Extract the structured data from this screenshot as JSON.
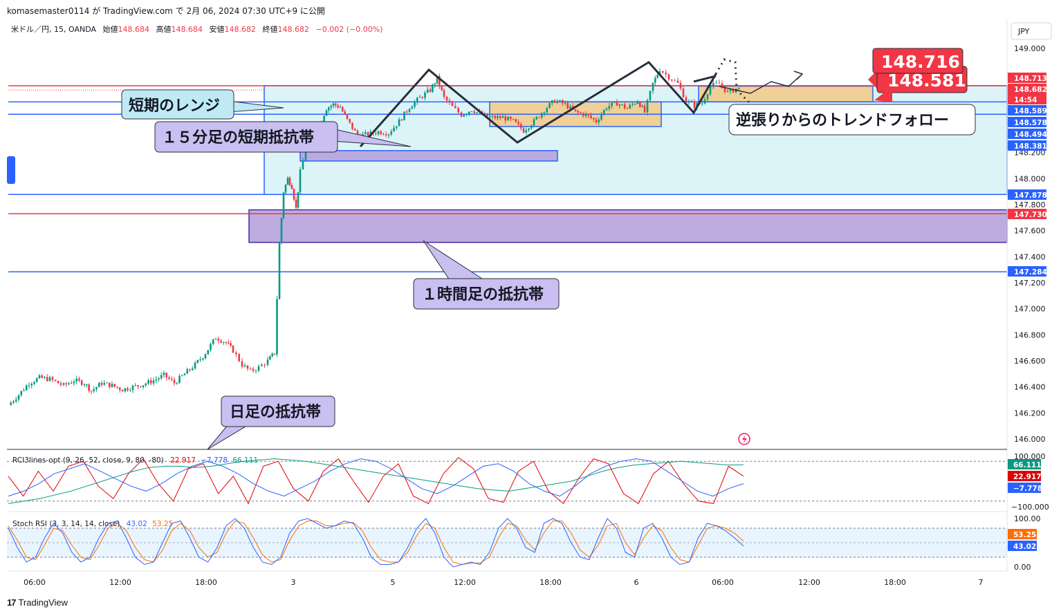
{
  "header": {
    "publish_line": "komasemaster0114 が TradingView.com で 2月 06, 2024 07:30 UTC+9 に公開"
  },
  "legend": {
    "symbol": "米ドル／円, 15, OANDA",
    "open_label": "始値",
    "open": "148.684",
    "high_label": "高値",
    "high": "148.684",
    "low_label": "安値",
    "low": "148.682",
    "close_label": "終値",
    "close": "148.682",
    "change": "−0.002 (−0.00%)"
  },
  "currency_button": "JPY",
  "footer_brand": "TradingView",
  "colors": {
    "up": "#089981",
    "down": "#f23645",
    "blue_line": "#2962ff",
    "red_line": "#f23645",
    "range_fill": "#d6f2f7",
    "purple_fill": "#b39ddb",
    "orange_fill": "#f3c985"
  },
  "annotations": {
    "short_range": "短期のレンジ",
    "m15_resistance": "１５分足の短期抵抗帯",
    "h1_resistance": "１時間足の抵抗帯",
    "daily_resistance": "日足の抵抗帯",
    "trend_follow": "逆張りからのトレンドフォロー",
    "target_high": "148.716",
    "target_low": "148.581"
  },
  "price_badges": [
    {
      "text": "148.713",
      "color": "#f23645"
    },
    {
      "text": "148.682",
      "color": "#f23645"
    },
    {
      "text": "14:54",
      "color": "#f23645"
    },
    {
      "text": "148.589",
      "color": "#2962ff"
    },
    {
      "text": "148.578",
      "color": "#2962ff"
    },
    {
      "text": "148.494",
      "color": "#2962ff"
    },
    {
      "text": "148.381",
      "color": "#2962ff"
    },
    {
      "text": "147.878",
      "color": "#2962ff"
    },
    {
      "text": "147.730",
      "color": "#f23645"
    },
    {
      "text": "147.284",
      "color": "#2962ff"
    }
  ],
  "rci_panel": {
    "title": "RCI3lines-opt (9, 26, 52, close, 9, 80, -80)",
    "v1": "22.917",
    "v2": "−7.778",
    "v3": "66.111",
    "badges": [
      {
        "text": "66.111",
        "color": "#089981"
      },
      {
        "text": "22.917",
        "color": "#e00000"
      },
      {
        "text": "−7.778",
        "color": "#2962ff"
      }
    ],
    "axis": [
      "100.000",
      "−100.000"
    ]
  },
  "stoch_panel": {
    "title": "Stoch RSI (3, 3, 14, 14, close)",
    "k": "43.02",
    "d": "53.25",
    "badges": [
      {
        "text": "53.25",
        "color": "#ff6d00"
      },
      {
        "text": "43.02",
        "color": "#2962ff"
      }
    ],
    "axis": [
      "100.00",
      "0.00"
    ]
  },
  "chart_data": {
    "type": "candlestick",
    "symbol": "USDJPY",
    "interval": "15",
    "price_axis": [
      "149.000",
      "148.200",
      "148.000",
      "147.800",
      "147.600",
      "147.400",
      "147.200",
      "147.000",
      "146.800",
      "146.600",
      "146.400",
      "146.200",
      "146.000"
    ],
    "time_axis": [
      "06:00",
      "12:00",
      "18:00",
      "3",
      "5",
      "12:00",
      "18:00",
      "6",
      "06:00",
      "12:00",
      "18:00",
      "7"
    ],
    "levels": [
      148.713,
      148.682,
      148.589,
      148.578,
      148.494,
      148.381,
      147.878,
      147.73,
      147.284
    ],
    "path": [
      [
        0,
        146.26
      ],
      [
        15,
        146.34
      ],
      [
        30,
        146.43
      ],
      [
        45,
        146.47
      ],
      [
        60,
        146.46
      ],
      [
        80,
        146.41
      ],
      [
        95,
        146.45
      ],
      [
        110,
        146.43
      ],
      [
        120,
        146.37
      ],
      [
        135,
        146.43
      ],
      [
        150,
        146.41
      ],
      [
        165,
        146.38
      ],
      [
        180,
        146.4
      ],
      [
        195,
        146.42
      ],
      [
        210,
        146.45
      ],
      [
        225,
        146.49
      ],
      [
        240,
        146.43
      ],
      [
        255,
        146.5
      ],
      [
        270,
        146.57
      ],
      [
        285,
        146.66
      ],
      [
        300,
        146.78
      ],
      [
        315,
        146.74
      ],
      [
        325,
        146.68
      ],
      [
        338,
        146.57
      ],
      [
        350,
        146.52
      ],
      [
        362,
        146.55
      ],
      [
        375,
        146.6
      ],
      [
        385,
        146.66
      ],
      [
        392,
        147.5
      ],
      [
        398,
        147.9
      ],
      [
        404,
        148.0
      ],
      [
        410,
        147.94
      ],
      [
        416,
        147.77
      ],
      [
        422,
        148.05
      ],
      [
        430,
        148.22
      ],
      [
        440,
        148.3
      ],
      [
        450,
        148.41
      ],
      [
        460,
        148.54
      ],
      [
        470,
        148.57
      ],
      [
        480,
        148.55
      ],
      [
        490,
        148.45
      ],
      [
        505,
        148.33
      ],
      [
        520,
        148.34
      ],
      [
        535,
        148.36
      ],
      [
        550,
        148.35
      ],
      [
        565,
        148.44
      ],
      [
        580,
        148.55
      ],
      [
        595,
        148.62
      ],
      [
        610,
        148.68
      ],
      [
        620,
        148.77
      ],
      [
        630,
        148.62
      ],
      [
        642,
        148.55
      ],
      [
        655,
        148.49
      ],
      [
        670,
        148.53
      ],
      [
        685,
        148.49
      ],
      [
        700,
        148.47
      ],
      [
        715,
        148.47
      ],
      [
        730,
        148.44
      ],
      [
        745,
        148.37
      ],
      [
        760,
        148.44
      ],
      [
        775,
        148.53
      ],
      [
        790,
        148.6
      ],
      [
        805,
        148.57
      ],
      [
        820,
        148.51
      ],
      [
        835,
        148.49
      ],
      [
        850,
        148.44
      ],
      [
        865,
        148.55
      ],
      [
        880,
        148.58
      ],
      [
        895,
        148.54
      ],
      [
        910,
        148.6
      ],
      [
        920,
        148.51
      ],
      [
        932,
        148.73
      ],
      [
        942,
        148.84
      ],
      [
        955,
        148.78
      ],
      [
        968,
        148.73
      ],
      [
        980,
        148.6
      ],
      [
        992,
        148.56
      ],
      [
        1003,
        148.58
      ],
      [
        1015,
        148.71
      ],
      [
        1028,
        148.73
      ],
      [
        1040,
        148.66
      ],
      [
        1052,
        148.69
      ],
      [
        1065,
        148.69
      ],
      [
        1073,
        148.682
      ]
    ],
    "zones": [
      {
        "name": "short-range",
        "top": 148.713,
        "bottom": 147.878
      },
      {
        "name": "m15-resistance",
        "top": 148.215,
        "bottom": 148.135
      },
      {
        "name": "h1-resistance",
        "top": 147.76,
        "bottom": 147.51
      },
      {
        "name": "range-box-1",
        "top": 148.59,
        "bottom": 148.4
      },
      {
        "name": "range-box-2",
        "top": 148.71,
        "bottom": 148.59
      }
    ],
    "rci": {
      "ylim": [
        -100,
        100
      ],
      "short": [
        20,
        -60,
        40,
        -40,
        60,
        80,
        -20,
        -70,
        30,
        90,
        -10,
        -80,
        50,
        70,
        -50,
        20,
        -90,
        60,
        80,
        -30,
        -80,
        40,
        90,
        0,
        -85,
        20,
        70,
        -60,
        -90,
        30,
        95,
        50,
        -70,
        -85,
        40,
        80,
        -40,
        -90,
        10,
        90,
        70,
        -50,
        -90,
        30,
        80,
        -10,
        -80,
        -90,
        60,
        20
      ],
      "mid": [
        -60,
        -40,
        -10,
        30,
        50,
        70,
        40,
        10,
        -20,
        -40,
        -10,
        30,
        60,
        80,
        60,
        30,
        -10,
        -40,
        -60,
        -30,
        0,
        40,
        70,
        90,
        80,
        50,
        10,
        -30,
        -50,
        -20,
        20,
        60,
        70,
        40,
        -10,
        -40,
        -60,
        -20,
        30,
        60,
        80,
        90,
        80,
        40,
        0,
        -40,
        -60,
        -30,
        -10
      ],
      "long": [
        -90,
        -80,
        -70,
        -55,
        -40,
        -20,
        0,
        20,
        40,
        55,
        60,
        60,
        55,
        60,
        70,
        80,
        85,
        90,
        85,
        80,
        70,
        60,
        50,
        40,
        30,
        20,
        10,
        0,
        -10,
        -20,
        -30,
        -35,
        -40,
        -30,
        -20,
        -10,
        0,
        20,
        40,
        55,
        65,
        70,
        75,
        80,
        75,
        70,
        65,
        66
      ]
    },
    "stoch": {
      "ylim": [
        0,
        100
      ],
      "k": [
        80,
        40,
        10,
        20,
        60,
        90,
        70,
        30,
        10,
        20,
        60,
        90,
        95,
        60,
        20,
        5,
        10,
        50,
        90,
        95,
        60,
        20,
        10,
        40,
        85,
        100,
        80,
        40,
        10,
        5,
        20,
        70,
        95,
        100,
        90,
        80,
        85,
        95,
        90,
        60,
        20,
        5,
        5,
        10,
        40,
        80,
        100,
        70,
        20,
        0,
        5,
        10,
        5,
        30,
        80,
        100,
        80,
        40,
        30,
        90,
        100,
        90,
        50,
        20,
        15,
        60,
        100,
        80,
        30,
        20,
        80,
        90,
        60,
        20,
        5,
        10,
        60,
        90,
        85,
        75,
        60,
        43
      ],
      "d": [
        85,
        55,
        20,
        15,
        45,
        80,
        75,
        45,
        20,
        15,
        45,
        80,
        90,
        75,
        40,
        15,
        10,
        35,
        75,
        90,
        75,
        40,
        20,
        30,
        70,
        95,
        90,
        60,
        25,
        10,
        15,
        55,
        85,
        95,
        95,
        85,
        85,
        90,
        92,
        75,
        40,
        15,
        10,
        10,
        30,
        65,
        90,
        80,
        40,
        10,
        5,
        8,
        8,
        20,
        60,
        90,
        85,
        55,
        35,
        70,
        95,
        95,
        70,
        35,
        20,
        45,
        85,
        90,
        50,
        25,
        60,
        85,
        75,
        40,
        15,
        10,
        45,
        80,
        85,
        80,
        70,
        53
      ]
    }
  }
}
